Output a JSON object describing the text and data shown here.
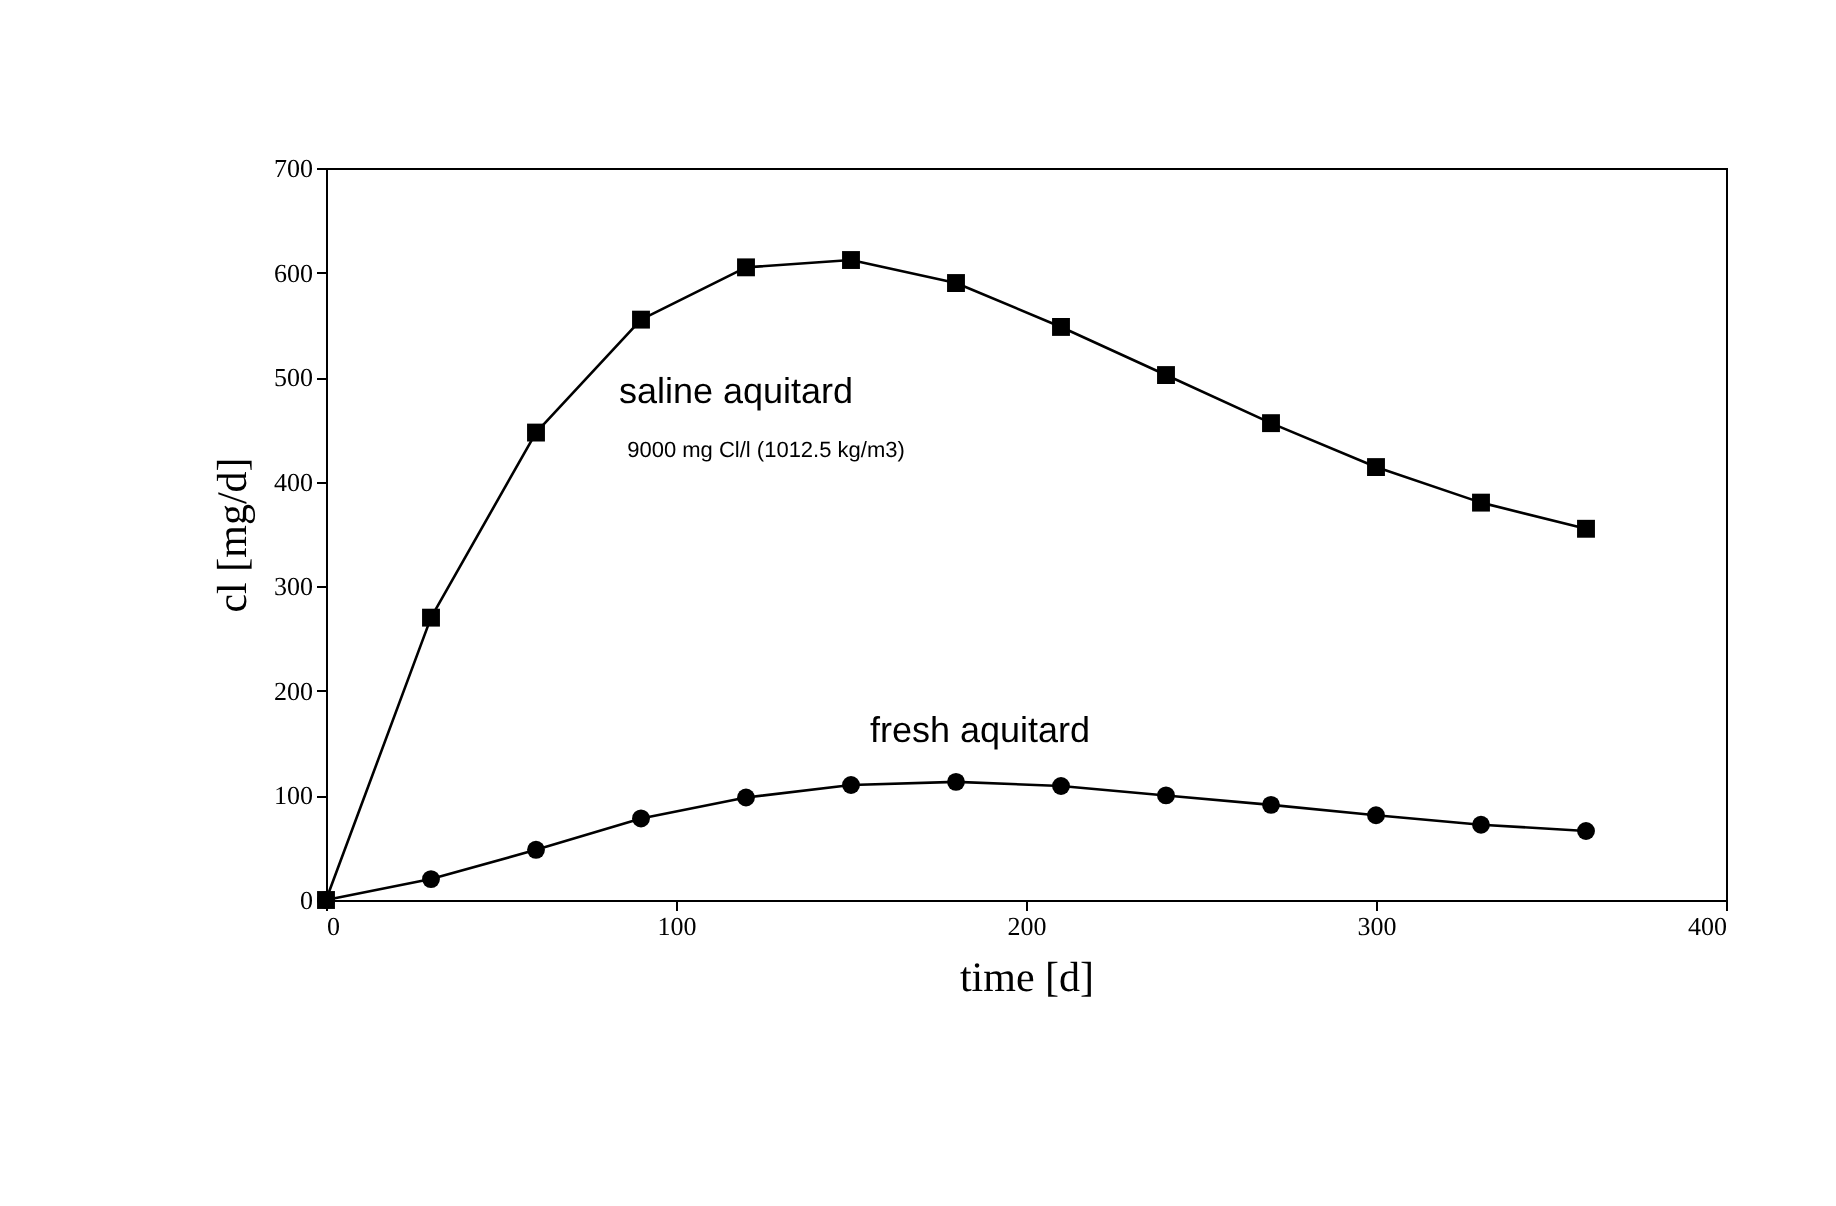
{
  "chart_data": {
    "type": "line",
    "xlabel": "time [d]",
    "ylabel": "cl [mg/d]",
    "x": [
      0,
      30,
      60,
      90,
      120,
      150,
      180,
      210,
      240,
      270,
      300,
      330,
      360
    ],
    "series": [
      {
        "name": "saline aquitard",
        "color": "#000000",
        "marker": "square",
        "values": [
          0,
          270,
          447,
          555,
          605,
          612,
          590,
          548,
          502,
          456,
          414,
          380,
          355
        ]
      },
      {
        "name": "fresh aquitard",
        "color": "#000000",
        "marker": "circle",
        "values": [
          0,
          20,
          48,
          78,
          98,
          110,
          113,
          109,
          100,
          91,
          81,
          72,
          66
        ]
      }
    ],
    "annotations": [
      "9000 mg Cl/l (1012.5 kg/m3)"
    ],
    "xlim": [
      0,
      400
    ],
    "xticks": [
      0,
      100,
      200,
      300,
      400
    ],
    "ylim": [
      0,
      700
    ],
    "yticks": [
      0,
      100,
      200,
      300,
      400,
      500,
      600,
      700
    ],
    "grid": false,
    "legend": false,
    "line_style": "solid"
  }
}
